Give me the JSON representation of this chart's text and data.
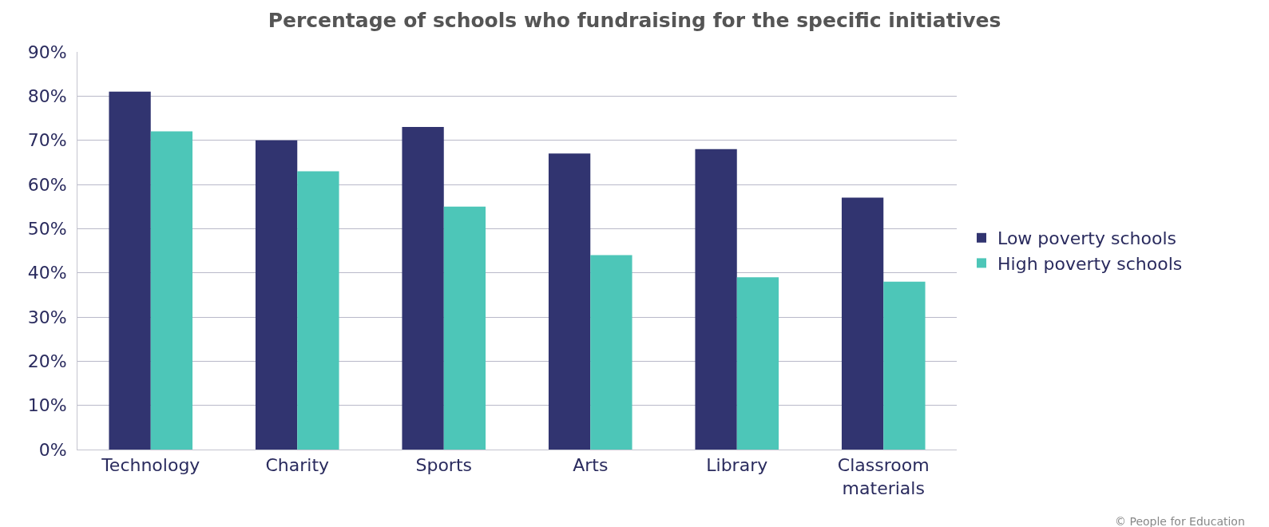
{
  "chart_data": {
    "type": "bar",
    "title": "Percentage of schools who fundraising for the specific initiatives",
    "categories": [
      "Technology",
      "Charity",
      "Sports",
      "Arts",
      "Library",
      "Classroom\nmaterials"
    ],
    "series": [
      {
        "name": "Low poverty schools",
        "color": "#313470",
        "values": [
          81,
          70,
          73,
          67,
          68,
          57
        ]
      },
      {
        "name": "High poverty schools",
        "color": "#4dc6b8",
        "values": [
          72,
          63,
          55,
          44,
          39,
          38
        ]
      }
    ],
    "ylim": [
      0,
      90
    ],
    "yticks": [
      {
        "value": 0,
        "label": "0%"
      },
      {
        "value": 10,
        "label": "10%"
      },
      {
        "value": 20,
        "label": "20%"
      },
      {
        "value": 30,
        "label": "30%"
      },
      {
        "value": 40,
        "label": "40%"
      },
      {
        "value": 50,
        "label": "50%"
      },
      {
        "value": 60,
        "label": "60%"
      },
      {
        "value": 70,
        "label": "70%"
      },
      {
        "value": 80,
        "label": "80%"
      },
      {
        "value": 90,
        "label": "90%"
      }
    ],
    "grid": "y",
    "legend": "right",
    "annotations": [
      "© People for Education"
    ]
  }
}
